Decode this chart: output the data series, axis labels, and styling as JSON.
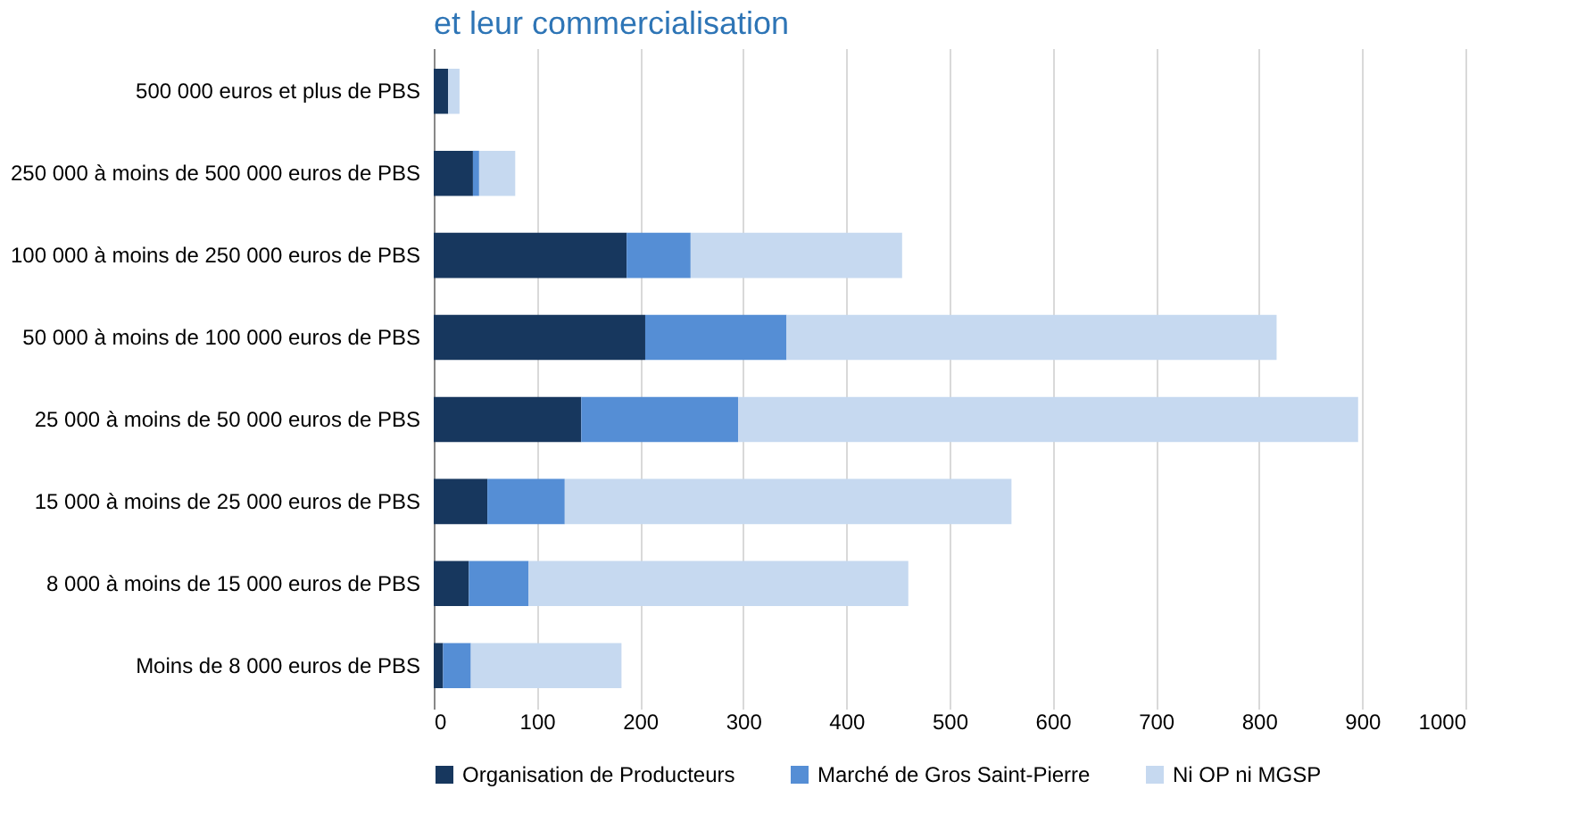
{
  "chart_data": {
    "type": "bar",
    "orientation": "horizontal",
    "stacked": true,
    "title": "et leur commercialisation",
    "categories": [
      "500 000 euros et plus de PBS",
      "250 000 à moins de 500 000 euros de PBS",
      "100 000 à moins de 250 000 euros de PBS",
      "50 000 à moins de 100 000 euros de PBS",
      "25 000 à moins de 50 000 euros de PBS",
      "15 000 à moins de 25 000 euros de PBS",
      "8 000 à moins de 15 000 euros de PBS",
      "Moins de 8 000 euros de PBS"
    ],
    "series": [
      {
        "name": "Organisation de Producteurs",
        "color": "#17375e",
        "values": [
          14,
          38,
          187,
          205,
          143,
          52,
          34,
          9
        ]
      },
      {
        "name": "Marché de Gros Saint-Pierre",
        "color": "#558ed5",
        "values": [
          0,
          6,
          62,
          137,
          152,
          75,
          58,
          27
        ]
      },
      {
        "name": "Ni OP ni MGSP",
        "color": "#c6d9f0",
        "values": [
          11,
          35,
          205,
          475,
          601,
          433,
          368,
          146
        ]
      }
    ],
    "xlim": [
      0,
      1000
    ],
    "xticks": [
      0,
      100,
      200,
      300,
      400,
      500,
      600,
      700,
      800,
      900,
      1000
    ],
    "grid": "x",
    "legend": "bottom"
  }
}
